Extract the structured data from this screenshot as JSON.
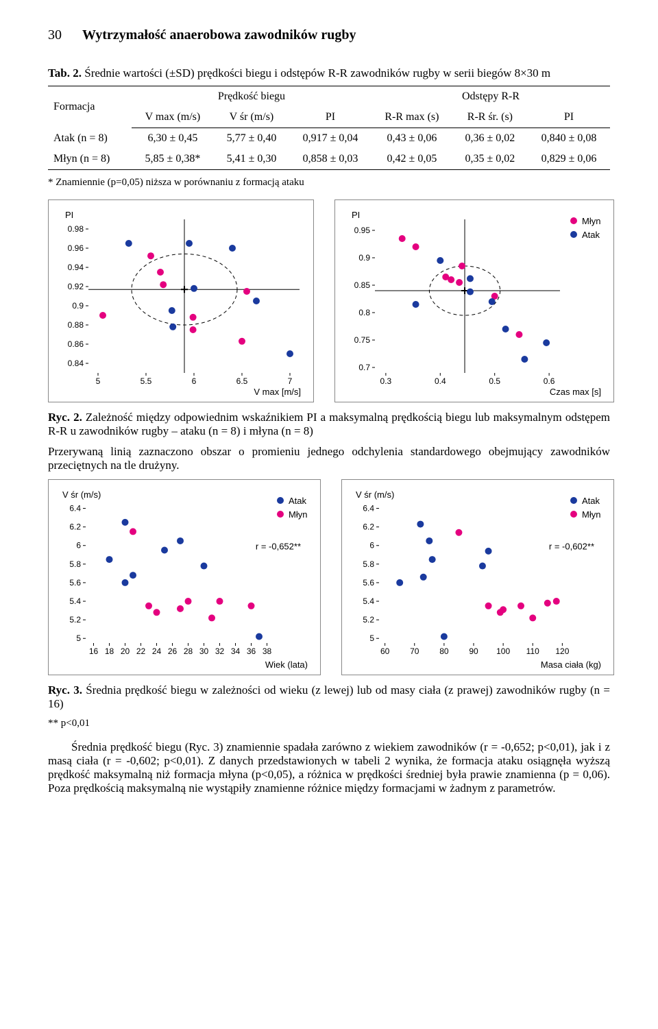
{
  "header": {
    "page_no": "30",
    "title": "Wytrzymałość anaerobowa zawodników rugby"
  },
  "table2": {
    "caption_lead": "Tab. 2. ",
    "caption_rest": "Średnie wartości (±SD) prędkości biegu i odstępów R-R zawodników rugby w serii biegów 8×30 m",
    "col_formacja": "Formacja",
    "group1": "Prędkość biegu",
    "group2": "Odstępy R-R",
    "sub_vmax": "V max (m/s)",
    "sub_vsr": "V śr (m/s)",
    "sub_pi": "PI",
    "sub_rrmax": "R-R max (s)",
    "sub_rrsr": "R-R śr. (s)",
    "sub_pi2": "PI",
    "row1_name": "Atak (n = 8)",
    "row1": [
      "6,30 ± 0,45",
      "5,77 ± 0,40",
      "0,917 ± 0,04",
      "0,43 ± 0,06",
      "0,36 ± 0,02",
      "0,840 ± 0,08"
    ],
    "row2_name": "Młyn (n = 8)",
    "row2": [
      "5,85 ± 0,38*",
      "5,41 ± 0,30",
      "0,858 ± 0,03",
      "0,42 ± 0,05",
      "0,35 ± 0,02",
      "0,829 ± 0,06"
    ],
    "footnote": "* Znamiennie (p=0,05) niższa w porównaniu z formacją ataku"
  },
  "colors": {
    "mlyn": "#e4007f",
    "atak": "#1a3a9e",
    "axis": "#000000",
    "box": "#888888",
    "dash": "#000000"
  },
  "chart_pi_v": {
    "type": "scatter",
    "y_label": "PI",
    "x_label": "V max [m/s]",
    "x_ticks": [
      5.0,
      5.5,
      6.0,
      6.5,
      7.0
    ],
    "y_ticks": [
      0.84,
      0.86,
      0.88,
      0.9,
      0.92,
      0.94,
      0.96,
      0.98
    ],
    "xlim": [
      4.9,
      7.1
    ],
    "ylim": [
      0.83,
      0.99
    ],
    "cross": {
      "x": 5.9,
      "r_y": 0.917,
      "rx": 0.55,
      "ry": 0.037
    },
    "mlyn_pts": [
      [
        5.05,
        0.89
      ],
      [
        5.55,
        0.952
      ],
      [
        5.65,
        0.935
      ],
      [
        5.68,
        0.922
      ],
      [
        5.99,
        0.888
      ],
      [
        5.99,
        0.875
      ],
      [
        6.5,
        0.863
      ],
      [
        6.55,
        0.915
      ]
    ],
    "atak_pts": [
      [
        5.32,
        0.965
      ],
      [
        5.95,
        0.965
      ],
      [
        6.4,
        0.96
      ],
      [
        5.77,
        0.895
      ],
      [
        5.78,
        0.878
      ],
      [
        6.0,
        0.918
      ],
      [
        6.65,
        0.905
      ],
      [
        7.0,
        0.85
      ]
    ],
    "marker_r": 5
  },
  "chart_pi_czas": {
    "type": "scatter",
    "y_label": "PI",
    "x_label": "Czas max [s]",
    "x_ticks": [
      0.3,
      0.4,
      0.5,
      0.6
    ],
    "y_ticks": [
      0.7,
      0.75,
      0.8,
      0.85,
      0.9,
      0.95
    ],
    "xlim": [
      0.28,
      0.62
    ],
    "ylim": [
      0.69,
      0.97
    ],
    "cross": {
      "x": 0.445,
      "r_y": 0.84,
      "rx": 0.065,
      "ry": 0.045
    },
    "mlyn_pts": [
      [
        0.33,
        0.935
      ],
      [
        0.355,
        0.92
      ],
      [
        0.41,
        0.865
      ],
      [
        0.42,
        0.86
      ],
      [
        0.435,
        0.855
      ],
      [
        0.44,
        0.885
      ],
      [
        0.545,
        0.76
      ],
      [
        0.5,
        0.83
      ]
    ],
    "atak_pts": [
      [
        0.355,
        0.815
      ],
      [
        0.4,
        0.895
      ],
      [
        0.455,
        0.862
      ],
      [
        0.455,
        0.838
      ],
      [
        0.495,
        0.82
      ],
      [
        0.52,
        0.77
      ],
      [
        0.555,
        0.715
      ],
      [
        0.595,
        0.745
      ]
    ],
    "legend": {
      "mlyn": "Młyn",
      "atak": "Atak"
    },
    "marker_r": 5
  },
  "fig2": {
    "caption_lead": "Ryc. 2. ",
    "caption_rest": "Zależność między odpowiednim wskaźnikiem PI a maksymalną prędkością biegu lub maksymalnym odstępem R-R u zawodników rugby – ataku (n = 8) i młyna (n = 8)",
    "note": "Przerywaną linią zaznaczono obszar o promieniu jednego odchylenia standardowego obejmujący zawodników przeciętnych na tle drużyny."
  },
  "chart_v_wiek": {
    "type": "scatter",
    "y_label": "V śr  (m/s)",
    "x_label": "Wiek (lata)",
    "x_ticks": [
      16,
      18,
      20,
      22,
      24,
      26,
      28,
      30,
      32,
      34,
      36,
      38
    ],
    "y_ticks": [
      5.0,
      5.2,
      5.4,
      5.6,
      5.8,
      6.0,
      6.2,
      6.4
    ],
    "xlim": [
      15,
      39
    ],
    "ylim": [
      4.95,
      6.5
    ],
    "r_text": "r = -0,652**",
    "legend": {
      "atak": "Atak",
      "mlyn": "Młyn"
    },
    "atak_pts": [
      [
        20,
        6.25
      ],
      [
        18,
        5.85
      ],
      [
        20,
        5.6
      ],
      [
        21,
        5.68
      ],
      [
        25,
        5.95
      ],
      [
        27,
        6.05
      ],
      [
        30,
        5.78
      ],
      [
        37,
        5.02
      ]
    ],
    "mlyn_pts": [
      [
        21,
        6.15
      ],
      [
        23,
        5.35
      ],
      [
        24,
        5.28
      ],
      [
        27,
        5.32
      ],
      [
        28,
        5.4
      ],
      [
        31,
        5.22
      ],
      [
        32,
        5.4
      ],
      [
        36,
        5.35
      ]
    ],
    "marker_r": 5
  },
  "chart_v_masa": {
    "type": "scatter",
    "y_label": "V śr  (m/s)",
    "x_label": "Masa ciała (kg)",
    "x_ticks": [
      60,
      70,
      80,
      90,
      100,
      110,
      120
    ],
    "y_ticks": [
      5.0,
      5.2,
      5.4,
      5.6,
      5.8,
      6.0,
      6.2,
      6.4
    ],
    "xlim": [
      58,
      122
    ],
    "ylim": [
      4.95,
      6.5
    ],
    "r_text": "r = -0,602**",
    "legend": {
      "atak": "Atak",
      "mlyn": "Młyn"
    },
    "atak_pts": [
      [
        72,
        6.23
      ],
      [
        75,
        6.05
      ],
      [
        76,
        5.85
      ],
      [
        65,
        5.6
      ],
      [
        73,
        5.66
      ],
      [
        93,
        5.78
      ],
      [
        95,
        5.94
      ],
      [
        80,
        5.02
      ]
    ],
    "mlyn_pts": [
      [
        85,
        6.14
      ],
      [
        95,
        5.35
      ],
      [
        99,
        5.28
      ],
      [
        100,
        5.31
      ],
      [
        106,
        5.35
      ],
      [
        110,
        5.22
      ],
      [
        115,
        5.38
      ],
      [
        118,
        5.4
      ]
    ],
    "marker_r": 5
  },
  "fig3": {
    "caption_lead": "Ryc. 3. ",
    "caption_rest": "Średnia prędkość biegu w zależności od wieku (z lewej) lub od masy ciała (z prawej) zawodników rugby (n = 16)",
    "note": "** p<0,01"
  },
  "para": "Średnia prędkość biegu (Ryc. 3) znamiennie spadała zarówno z wiekiem zawodników (r = -0,652; p<0,01), jak i z masą ciała (r = -0,602; p<0,01). Z danych przedstawionych w tabeli 2 wynika, że formacja ataku osiągnęła wyższą prędkość maksymalną niż formacja młyna (p<0,05), a różnica w prędkości średniej była prawie znamienna (p = 0,06). Poza prędkością maksymalną nie wystąpiły znamienne różnice między formacjami w żadnym z parametrów."
}
